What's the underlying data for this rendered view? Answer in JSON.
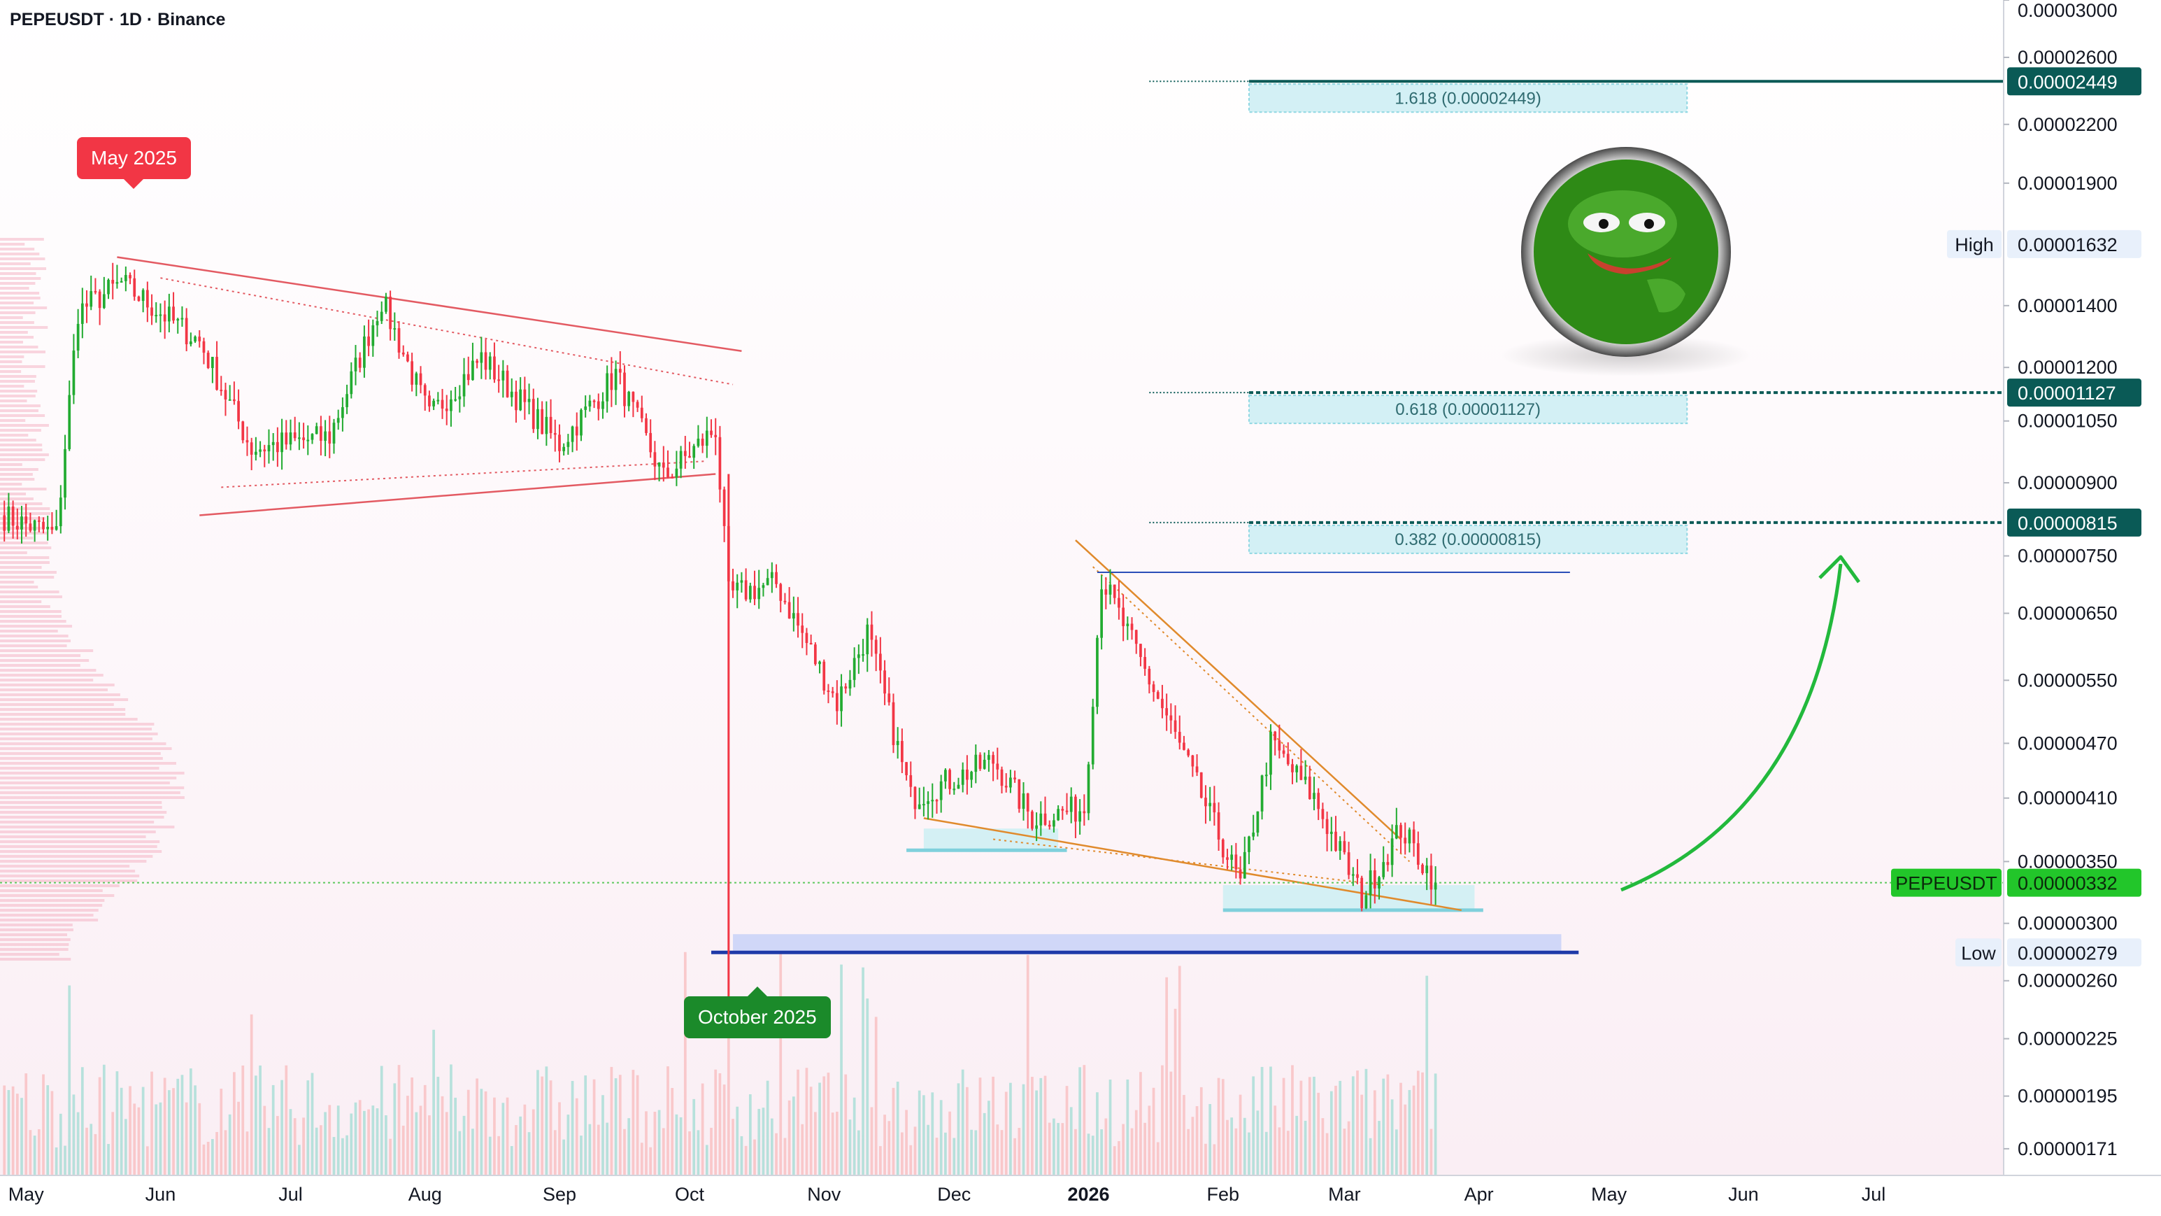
{
  "header": {
    "symbol_line": "PEPEUSDT · 1D · Binance"
  },
  "callouts": {
    "may": "May 2025",
    "october": "October 2025"
  },
  "fib_levels": [
    {
      "ratio": "1.618",
      "label": "1.618 (0.00002449)",
      "price": 2.449e-05,
      "price_label": "0.00002449"
    },
    {
      "ratio": "0.618",
      "label": "0.618 (0.00001127)",
      "price": 1.127e-05,
      "price_label": "0.00001127"
    },
    {
      "ratio": "0.382",
      "label": "0.382 (0.00000815)",
      "price": 8.15e-06,
      "price_label": "0.00000815"
    }
  ],
  "markers": {
    "high": {
      "label": "High",
      "value": "0.00001632",
      "price": 1.632e-05
    },
    "low": {
      "label": "Low",
      "value": "0.00000279",
      "price": 2.79e-06
    },
    "last": {
      "label": "PEPEUSDT",
      "value": "0.00000332",
      "price": 3.32e-06
    }
  },
  "colors": {
    "up": "#089981",
    "upCandle": "#22ab31",
    "down": "#f23645",
    "fib": "#0a5a56",
    "last": "#22c62a",
    "callout_red": "#f23645",
    "callout_green": "#1b8a2a"
  },
  "chart_data": {
    "type": "candlestick",
    "title": "PEPEUSDT · 1D · Binance",
    "y_scale": "log",
    "ylim": [
      1.6e-06,
      3e-05
    ],
    "y_ticks": [
      {
        "v": 3e-05,
        "label": "0.00003000"
      },
      {
        "v": 2.6e-05,
        "label": "0.00002600"
      },
      {
        "v": 2.2e-05,
        "label": "0.00002200"
      },
      {
        "v": 1.9e-05,
        "label": "0.00001900"
      },
      {
        "v": 1.4e-05,
        "label": "0.00001400"
      },
      {
        "v": 1.2e-05,
        "label": "0.00001200"
      },
      {
        "v": 1.05e-05,
        "label": "0.00001050"
      },
      {
        "v": 9e-06,
        "label": "0.00000900"
      },
      {
        "v": 7.5e-06,
        "label": "0.00000750"
      },
      {
        "v": 6.5e-06,
        "label": "0.00000650"
      },
      {
        "v": 5.5e-06,
        "label": "0.00000550"
      },
      {
        "v": 4.7e-06,
        "label": "0.00000470"
      },
      {
        "v": 4.1e-06,
        "label": "0.00000410"
      },
      {
        "v": 3.5e-06,
        "label": "0.00000350"
      },
      {
        "v": 3e-06,
        "label": "0.00000300"
      },
      {
        "v": 2.6e-06,
        "label": "0.00000260"
      },
      {
        "v": 2.25e-06,
        "label": "0.00000225"
      },
      {
        "v": 1.95e-06,
        "label": "0.00000195"
      },
      {
        "v": 1.71e-06,
        "label": "0.00000171"
      }
    ],
    "x_start": "2025-04-25",
    "x_end": "2026-07-31",
    "x_ticks": [
      {
        "date": "2025-05-01",
        "label": "May",
        "bold": false
      },
      {
        "date": "2025-06-01",
        "label": "Jun",
        "bold": false
      },
      {
        "date": "2025-07-01",
        "label": "Jul",
        "bold": false
      },
      {
        "date": "2025-08-01",
        "label": "Aug",
        "bold": false
      },
      {
        "date": "2025-09-01",
        "label": "Sep",
        "bold": false
      },
      {
        "date": "2025-10-01",
        "label": "Oct",
        "bold": false
      },
      {
        "date": "2025-11-01",
        "label": "Nov",
        "bold": false
      },
      {
        "date": "2025-12-01",
        "label": "Dec",
        "bold": false
      },
      {
        "date": "2026-01-01",
        "label": "2026",
        "bold": true
      },
      {
        "date": "2026-02-01",
        "label": "Feb",
        "bold": false
      },
      {
        "date": "2026-03-01",
        "label": "Mar",
        "bold": false
      },
      {
        "date": "2026-04-01",
        "label": "Apr",
        "bold": false
      },
      {
        "date": "2026-05-01",
        "label": "May",
        "bold": false
      },
      {
        "date": "2026-06-01",
        "label": "Jun",
        "bold": false
      },
      {
        "date": "2026-07-01",
        "label": "Jul",
        "bold": false
      }
    ],
    "key_closes": [
      {
        "date": "2025-04-25",
        "close": 8.3e-06
      },
      {
        "date": "2025-05-08",
        "close": 7.9e-06
      },
      {
        "date": "2025-05-13",
        "close": 1.38e-05
      },
      {
        "date": "2025-05-23",
        "close": 1.48e-05
      },
      {
        "date": "2025-06-10",
        "close": 1.28e-05
      },
      {
        "date": "2025-06-22",
        "close": 9.8e-06
      },
      {
        "date": "2025-07-10",
        "close": 1.01e-05
      },
      {
        "date": "2025-07-22",
        "close": 1.42e-05
      },
      {
        "date": "2025-08-02",
        "close": 1.06e-05
      },
      {
        "date": "2025-08-14",
        "close": 1.23e-05
      },
      {
        "date": "2025-09-01",
        "close": 9.9e-06
      },
      {
        "date": "2025-09-14",
        "close": 1.18e-05
      },
      {
        "date": "2025-09-25",
        "close": 9.1e-06
      },
      {
        "date": "2025-10-07",
        "close": 1.03e-05
      },
      {
        "date": "2025-10-10",
        "close": 6.8e-06
      },
      {
        "date": "2025-10-21",
        "close": 7e-06
      },
      {
        "date": "2025-11-04",
        "close": 5.2e-06
      },
      {
        "date": "2025-11-11",
        "close": 6.2e-06
      },
      {
        "date": "2025-11-21",
        "close": 4.1e-06
      },
      {
        "date": "2025-12-10",
        "close": 4.5e-06
      },
      {
        "date": "2025-12-19",
        "close": 3.9e-06
      },
      {
        "date": "2025-12-31",
        "close": 4e-06
      },
      {
        "date": "2026-01-04",
        "close": 7.1e-06
      },
      {
        "date": "2026-01-20",
        "close": 4.9e-06
      },
      {
        "date": "2026-02-05",
        "close": 3.3e-06
      },
      {
        "date": "2026-02-12",
        "close": 4.7e-06
      },
      {
        "date": "2026-02-22",
        "close": 4.1e-06
      },
      {
        "date": "2026-03-05",
        "close": 3.2e-06
      },
      {
        "date": "2026-03-14",
        "close": 3.8e-06
      },
      {
        "date": "2026-03-22",
        "close": 3.32e-06
      }
    ],
    "legend": "none",
    "grid": false
  }
}
